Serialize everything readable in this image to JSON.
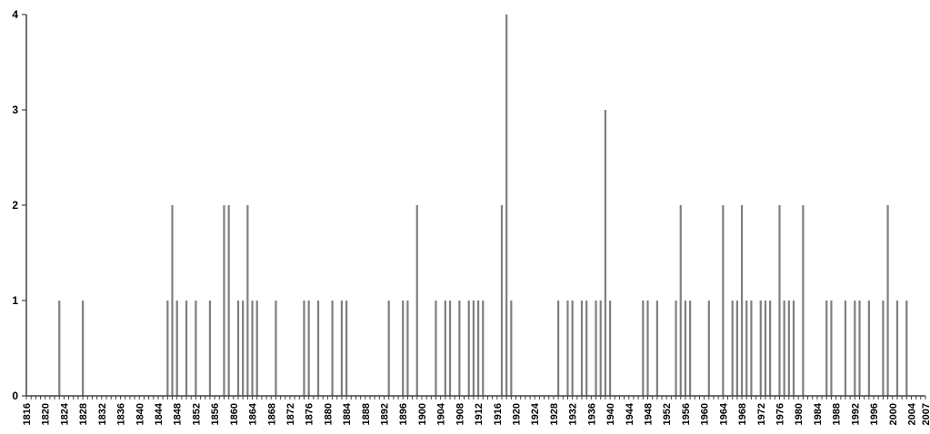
{
  "chart_data": {
    "type": "bar",
    "title": "",
    "xlabel": "",
    "ylabel": "",
    "xlim": [
      1816,
      2007
    ],
    "ylim": [
      0,
      4
    ],
    "grid": false,
    "legend": "none",
    "bar_color": "#7f7f7f",
    "axis_color": "#404040",
    "y_ticks": [
      "0",
      "1",
      "2",
      "3",
      "4"
    ],
    "x_tick_labels": [
      "1816",
      "1820",
      "1824",
      "1828",
      "1832",
      "1836",
      "1840",
      "1844",
      "1848",
      "1852",
      "1856",
      "1860",
      "1864",
      "1868",
      "1872",
      "1876",
      "1880",
      "1884",
      "1888",
      "1892",
      "1896",
      "1900",
      "1904",
      "1908",
      "1912",
      "1916",
      "1920",
      "1924",
      "1928",
      "1932",
      "1936",
      "1940",
      "1944",
      "1948",
      "1952",
      "1956",
      "1960",
      "1964",
      "1968",
      "1972",
      "1976",
      "1980",
      "1984",
      "1988",
      "1992",
      "1996",
      "2000",
      "2004",
      "2007"
    ],
    "points": [
      [
        1823,
        1
      ],
      [
        1828,
        1
      ],
      [
        1846,
        1
      ],
      [
        1847,
        2
      ],
      [
        1848,
        1
      ],
      [
        1850,
        1
      ],
      [
        1852,
        1
      ],
      [
        1855,
        1
      ],
      [
        1858,
        2
      ],
      [
        1859,
        2
      ],
      [
        1861,
        1
      ],
      [
        1862,
        1
      ],
      [
        1863,
        2
      ],
      [
        1864,
        1
      ],
      [
        1865,
        1
      ],
      [
        1869,
        1
      ],
      [
        1875,
        1
      ],
      [
        1876,
        1
      ],
      [
        1878,
        1
      ],
      [
        1881,
        1
      ],
      [
        1883,
        1
      ],
      [
        1884,
        1
      ],
      [
        1893,
        1
      ],
      [
        1896,
        1
      ],
      [
        1897,
        1
      ],
      [
        1899,
        2
      ],
      [
        1903,
        1
      ],
      [
        1905,
        1
      ],
      [
        1906,
        1
      ],
      [
        1908,
        1
      ],
      [
        1910,
        1
      ],
      [
        1911,
        1
      ],
      [
        1912,
        1
      ],
      [
        1913,
        1
      ],
      [
        1917,
        2
      ],
      [
        1918,
        4
      ],
      [
        1919,
        1
      ],
      [
        1929,
        1
      ],
      [
        1931,
        1
      ],
      [
        1932,
        1
      ],
      [
        1934,
        1
      ],
      [
        1935,
        1
      ],
      [
        1937,
        1
      ],
      [
        1938,
        1
      ],
      [
        1939,
        3
      ],
      [
        1940,
        1
      ],
      [
        1947,
        1
      ],
      [
        1948,
        1
      ],
      [
        1950,
        1
      ],
      [
        1954,
        1
      ],
      [
        1955,
        2
      ],
      [
        1956,
        1
      ],
      [
        1957,
        1
      ],
      [
        1961,
        1
      ],
      [
        1964,
        2
      ],
      [
        1966,
        1
      ],
      [
        1967,
        1
      ],
      [
        1968,
        2
      ],
      [
        1969,
        1
      ],
      [
        1970,
        1
      ],
      [
        1972,
        1
      ],
      [
        1973,
        1
      ],
      [
        1974,
        1
      ],
      [
        1976,
        2
      ],
      [
        1977,
        1
      ],
      [
        1978,
        1
      ],
      [
        1979,
        1
      ],
      [
        1981,
        2
      ],
      [
        1986,
        1
      ],
      [
        1987,
        1
      ],
      [
        1990,
        1
      ],
      [
        1992,
        1
      ],
      [
        1993,
        1
      ],
      [
        1995,
        1
      ],
      [
        1998,
        1
      ],
      [
        1999,
        2
      ],
      [
        2001,
        1
      ],
      [
        2003,
        1
      ]
    ]
  }
}
